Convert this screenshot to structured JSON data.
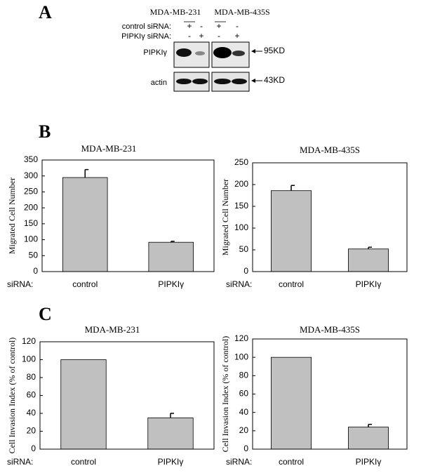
{
  "panels": [
    "A",
    "B",
    "C"
  ],
  "blot": {
    "cell_lines": [
      "MDA-MB-231",
      "MDA-MB-435S"
    ],
    "rows": [
      {
        "label": "control siRNA:",
        "signs": [
          "+",
          "-",
          "+",
          "-"
        ]
      },
      {
        "label": "PIPKIγ siRNA:",
        "signs": [
          "-",
          "+",
          "-",
          "+"
        ]
      }
    ],
    "bands": [
      {
        "label": "PIPKIγ",
        "marker": "95KD"
      },
      {
        "label": "actin",
        "marker": "43KD"
      }
    ]
  },
  "chart_data": [
    {
      "type": "bar",
      "title": "MDA-MB-231",
      "ylabel": "Migrated Cell Number",
      "xlabel": "siRNA:",
      "categories": [
        "control",
        "PIPKIγ"
      ],
      "values": [
        295,
        92
      ],
      "errors": [
        25,
        3
      ],
      "color": "#c0c0c0",
      "ylim": [
        0,
        350
      ],
      "yticks": [
        0,
        50,
        100,
        150,
        200,
        250,
        300,
        350
      ]
    },
    {
      "type": "bar",
      "title": "MDA-MB-435S",
      "ylabel": "Migrated Cell Number",
      "xlabel": "siRNA:",
      "categories": [
        "control",
        "PIPKIγ"
      ],
      "values": [
        186,
        52
      ],
      "errors": [
        12,
        4
      ],
      "color": "#c0c0c0",
      "ylim": [
        0,
        250
      ],
      "yticks": [
        0,
        50,
        100,
        150,
        200,
        250
      ]
    },
    {
      "type": "bar",
      "title": "MDA-MB-231",
      "ylabel": "Cell Invasion Index (% of control)",
      "xlabel": "siRNA:",
      "categories": [
        "control",
        "PIPKIγ"
      ],
      "values": [
        100,
        35
      ],
      "errors": [
        null,
        5
      ],
      "color": "#c0c0c0",
      "ylim": [
        0,
        120
      ],
      "yticks": [
        0,
        20,
        40,
        60,
        80,
        100,
        120
      ]
    },
    {
      "type": "bar",
      "title": "MDA-MB-435S",
      "ylabel": "Cell Invasion Index (% of control)",
      "xlabel": "siRNA:",
      "categories": [
        "control",
        "PIPKIγ"
      ],
      "values": [
        100,
        24
      ],
      "errors": [
        null,
        3
      ],
      "color": "#c0c0c0",
      "ylim": [
        0,
        120
      ],
      "yticks": [
        0,
        20,
        40,
        60,
        80,
        100,
        120
      ]
    }
  ]
}
